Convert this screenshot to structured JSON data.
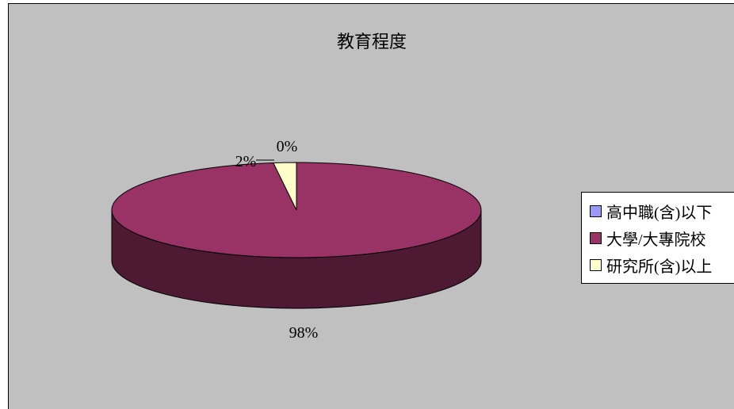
{
  "chart_data": {
    "type": "pie",
    "title": "教育程度",
    "categories": [
      "高中職(含)以下",
      "大學/大專院校",
      "研究所(含)以上"
    ],
    "values": [
      0,
      98,
      2
    ],
    "labels": [
      "0%",
      "98%",
      "2%"
    ],
    "colors": [
      "#9999ff",
      "#993366",
      "#ffffcc"
    ],
    "side_colors": [
      "#4c4c80",
      "#4d1933",
      "#808066"
    ],
    "legend_position": "right",
    "three_d": true
  }
}
